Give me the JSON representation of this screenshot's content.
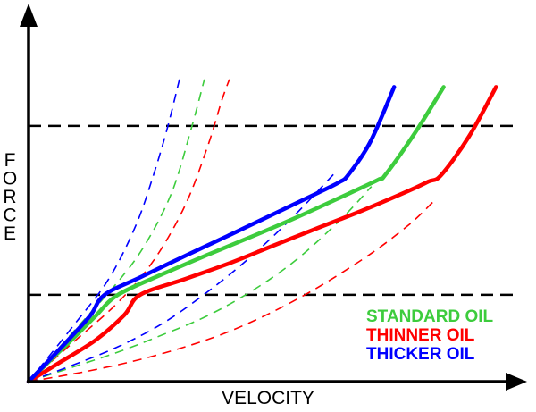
{
  "chart_data": {
    "type": "line",
    "title": "",
    "xlabel": "VELOCITY",
    "ylabel": "FORCE",
    "xlim": [
      0,
      100
    ],
    "ylim": [
      0,
      100
    ],
    "grid": false,
    "legend_position": "bottom-right",
    "reference_lines": [
      {
        "axis": "y",
        "value": 25.9,
        "style": "dashed",
        "color": "#000000"
      },
      {
        "axis": "y",
        "value": 76.3,
        "style": "dashed",
        "color": "#000000"
      }
    ],
    "series": [
      {
        "name": "STANDARD OIL",
        "color": "#3dcc3d",
        "solid": [
          [
            0,
            0
          ],
          [
            4.8,
            6.5
          ],
          [
            9.7,
            13.0
          ],
          [
            14.5,
            19.6
          ],
          [
            19.3,
            25.9
          ],
          [
            29.0,
            32.1
          ],
          [
            38.6,
            37.8
          ],
          [
            48.3,
            43.3
          ],
          [
            57.9,
            49.0
          ],
          [
            67.6,
            55.1
          ],
          [
            75.5,
            60.2
          ],
          [
            77.2,
            61.9
          ],
          [
            83.4,
            74.0
          ],
          [
            89.7,
            87.9
          ]
        ],
        "dashed_primary": [
          [
            0,
            0
          ],
          [
            9.7,
            14.9
          ],
          [
            19.3,
            29.8
          ],
          [
            25.1,
            40.7
          ],
          [
            30.9,
            56.3
          ],
          [
            35.1,
            75.2
          ],
          [
            38.0,
            90.2
          ]
        ],
        "dashed_secondary": [
          [
            0,
            0
          ],
          [
            9.7,
            4.4
          ],
          [
            19.3,
            8.8
          ],
          [
            29.0,
            14.0
          ],
          [
            38.6,
            19.6
          ],
          [
            48.3,
            27.1
          ],
          [
            57.9,
            36.4
          ],
          [
            67.6,
            48.6
          ],
          [
            74.1,
            58.2
          ]
        ]
      },
      {
        "name": "THINNER OIL",
        "color": "#ff0000",
        "solid": [
          [
            0,
            0
          ],
          [
            7.2,
            6.1
          ],
          [
            14.5,
            12.4
          ],
          [
            20.7,
            19.9
          ],
          [
            24.1,
            25.9
          ],
          [
            33.8,
            30.6
          ],
          [
            43.4,
            35.3
          ],
          [
            53.1,
            40.7
          ],
          [
            62.8,
            46.0
          ],
          [
            72.4,
            51.2
          ],
          [
            82.1,
            56.9
          ],
          [
            86.4,
            59.7
          ],
          [
            89.2,
            61.7
          ],
          [
            95.2,
            73.2
          ],
          [
            101.0,
            87.9
          ]
        ],
        "dashed_primary": [
          [
            0,
            0
          ],
          [
            9.7,
            11.8
          ],
          [
            19.3,
            23.6
          ],
          [
            27.0,
            36.1
          ],
          [
            33.8,
            52.5
          ],
          [
            38.6,
            69.8
          ],
          [
            41.7,
            83.7
          ],
          [
            43.4,
            90.2
          ]
        ],
        "dashed_secondary": [
          [
            0,
            0
          ],
          [
            14.5,
            3.6
          ],
          [
            29.0,
            8.4
          ],
          [
            43.4,
            15.0
          ],
          [
            57.9,
            24.5
          ],
          [
            72.4,
            36.7
          ],
          [
            82.1,
            46.7
          ],
          [
            87.4,
            53.6
          ]
        ]
      },
      {
        "name": "THICKER OIL",
        "color": "#0000ff",
        "solid": [
          [
            0,
            0
          ],
          [
            4.8,
            6.9
          ],
          [
            9.7,
            14.1
          ],
          [
            13.5,
            20.0
          ],
          [
            16.4,
            25.9
          ],
          [
            24.1,
            31.1
          ],
          [
            33.8,
            37.5
          ],
          [
            43.4,
            43.7
          ],
          [
            53.1,
            50.1
          ],
          [
            62.8,
            56.5
          ],
          [
            67.1,
            59.5
          ],
          [
            69.1,
            61.7
          ],
          [
            73.8,
            71.4
          ],
          [
            79.0,
            87.9
          ]
        ],
        "dashed_primary": [
          [
            0,
            0
          ],
          [
            9.7,
            16.7
          ],
          [
            17.4,
            30.8
          ],
          [
            23.2,
            46.7
          ],
          [
            27.0,
            61.7
          ],
          [
            30.0,
            75.7
          ],
          [
            32.6,
            90.2
          ]
        ],
        "dashed_secondary": [
          [
            0,
            0
          ],
          [
            9.7,
            5.0
          ],
          [
            19.3,
            10.4
          ],
          [
            29.0,
            17.4
          ],
          [
            38.6,
            26.7
          ],
          [
            48.3,
            37.6
          ],
          [
            57.9,
            50.2
          ],
          [
            66.4,
            62.6
          ]
        ]
      }
    ]
  }
}
